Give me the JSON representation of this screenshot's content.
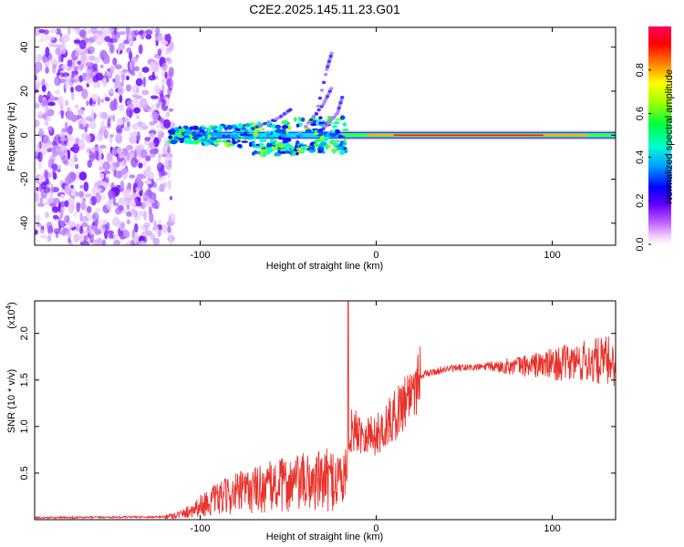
{
  "title": "C2E2.2025.145.11.23.G01",
  "colors": {
    "snr_line": "#e8322c",
    "background": "#ffffff",
    "axis": "#000000"
  },
  "chart_data": [
    {
      "type": "heatmap",
      "name": "spectrogram",
      "xlabel": "Height of straight line (km)",
      "ylabel": "Frequency (Hz)",
      "xlim": [
        -194,
        136
      ],
      "ylim": [
        -50,
        49
      ],
      "x_ticks": [
        -100,
        0,
        100
      ],
      "y_ticks": [
        -40,
        -20,
        0,
        20,
        40
      ],
      "x_tick_labels": [
        "-100",
        "0",
        "100"
      ],
      "y_tick_labels": [
        "-40",
        "-20",
        "0",
        "20",
        "40"
      ],
      "noise_region_x": [
        -194,
        -119
      ],
      "signal_x_start": -117,
      "signal_freq_hz": 0,
      "colorbar": {
        "label": "Normalized spectral amplitude",
        "range": [
          0,
          1
        ],
        "ticks": [
          0.0,
          0.2,
          0.4,
          0.6,
          0.8
        ],
        "tick_labels": [
          "0.0",
          "0.2",
          "0.4",
          "0.6",
          "0.8"
        ]
      }
    },
    {
      "type": "line",
      "name": "snr",
      "xlabel": "Height of straight line (km)",
      "ylabel": "SNR (10 * v/v)",
      "scale_label": "(x10",
      "scale_exp": "4",
      "xlim": [
        -194,
        136
      ],
      "ylim": [
        0,
        2.35
      ],
      "x_ticks": [
        -100,
        0,
        100
      ],
      "y_ticks": [
        0.5,
        1.0,
        1.5,
        2.0
      ],
      "x_tick_labels": [
        "-100",
        "0",
        "100"
      ],
      "y_tick_labels": [
        "0.5",
        "1.0",
        "1.5",
        "2.0"
      ],
      "envelope": [
        {
          "x": -194,
          "y": 0.02
        },
        {
          "x": -120,
          "y": 0.03
        },
        {
          "x": -110,
          "y": 0.06
        },
        {
          "x": -100,
          "y": 0.15
        },
        {
          "x": -90,
          "y": 0.22
        },
        {
          "x": -80,
          "y": 0.28
        },
        {
          "x": -70,
          "y": 0.32
        },
        {
          "x": -60,
          "y": 0.35
        },
        {
          "x": -50,
          "y": 0.38
        },
        {
          "x": -40,
          "y": 0.4
        },
        {
          "x": -30,
          "y": 0.42
        },
        {
          "x": -17,
          "y": 0.45
        },
        {
          "x": -15,
          "y": 0.95
        },
        {
          "x": -10,
          "y": 0.95
        },
        {
          "x": 0,
          "y": 0.9
        },
        {
          "x": 10,
          "y": 1.1
        },
        {
          "x": 20,
          "y": 1.4
        },
        {
          "x": 25,
          "y": 1.55
        },
        {
          "x": 40,
          "y": 1.62
        },
        {
          "x": 60,
          "y": 1.64
        },
        {
          "x": 80,
          "y": 1.65
        },
        {
          "x": 100,
          "y": 1.67
        },
        {
          "x": 120,
          "y": 1.7
        },
        {
          "x": 136,
          "y": 1.7
        }
      ],
      "spike": {
        "x": -16,
        "y": 2.35
      }
    }
  ]
}
